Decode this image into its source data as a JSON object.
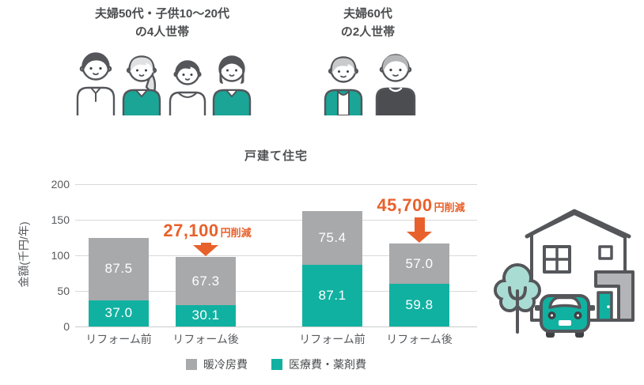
{
  "households": [
    {
      "label_line1": "夫婦50代・子供10〜20代",
      "label_line2": "の4人世帯"
    },
    {
      "label_line1": "夫婦60代",
      "label_line2": "の2人世帯"
    }
  ],
  "chart_data": {
    "type": "bar",
    "stacked": true,
    "title": "戸建て住宅",
    "xlabel": "",
    "ylabel": "金額(千円/年)",
    "ylim": [
      0,
      200
    ],
    "yticks": [
      0,
      50,
      100,
      150,
      200
    ],
    "grid": true,
    "categories": [
      "リフォーム前",
      "リフォーム後",
      "リフォーム前",
      "リフォーム後"
    ],
    "series": [
      {
        "name": "医療費・薬剤費",
        "color": "#11b1a1",
        "values": [
          37.0,
          30.1,
          87.1,
          59.8
        ]
      },
      {
        "name": "暖冷房費",
        "color": "#a7a9ab",
        "values": [
          87.5,
          67.3,
          75.4,
          57.0
        ]
      }
    ],
    "annotations": [
      {
        "amount": "27,100",
        "suffix": "円削減",
        "target_bar": 1
      },
      {
        "amount": "45,700",
        "suffix": "円削減",
        "target_bar": 3
      }
    ],
    "legend": [
      {
        "label": "暖冷房費",
        "color": "#a7a9ab"
      },
      {
        "label": "医療費・薬剤費",
        "color": "#11b1a1"
      }
    ],
    "legend_position": "bottom"
  },
  "colors": {
    "teal": "#11b1a1",
    "gray": "#a7a9ab",
    "orange": "#e8612c",
    "outline": "#54565a",
    "grid": "#d9d9d9",
    "text": "#4b4d4f"
  },
  "icons": {
    "family_four": "family-of-four illustration",
    "elderly_couple": "elderly-couple illustration",
    "house": "detached house with car and tree illustration"
  }
}
